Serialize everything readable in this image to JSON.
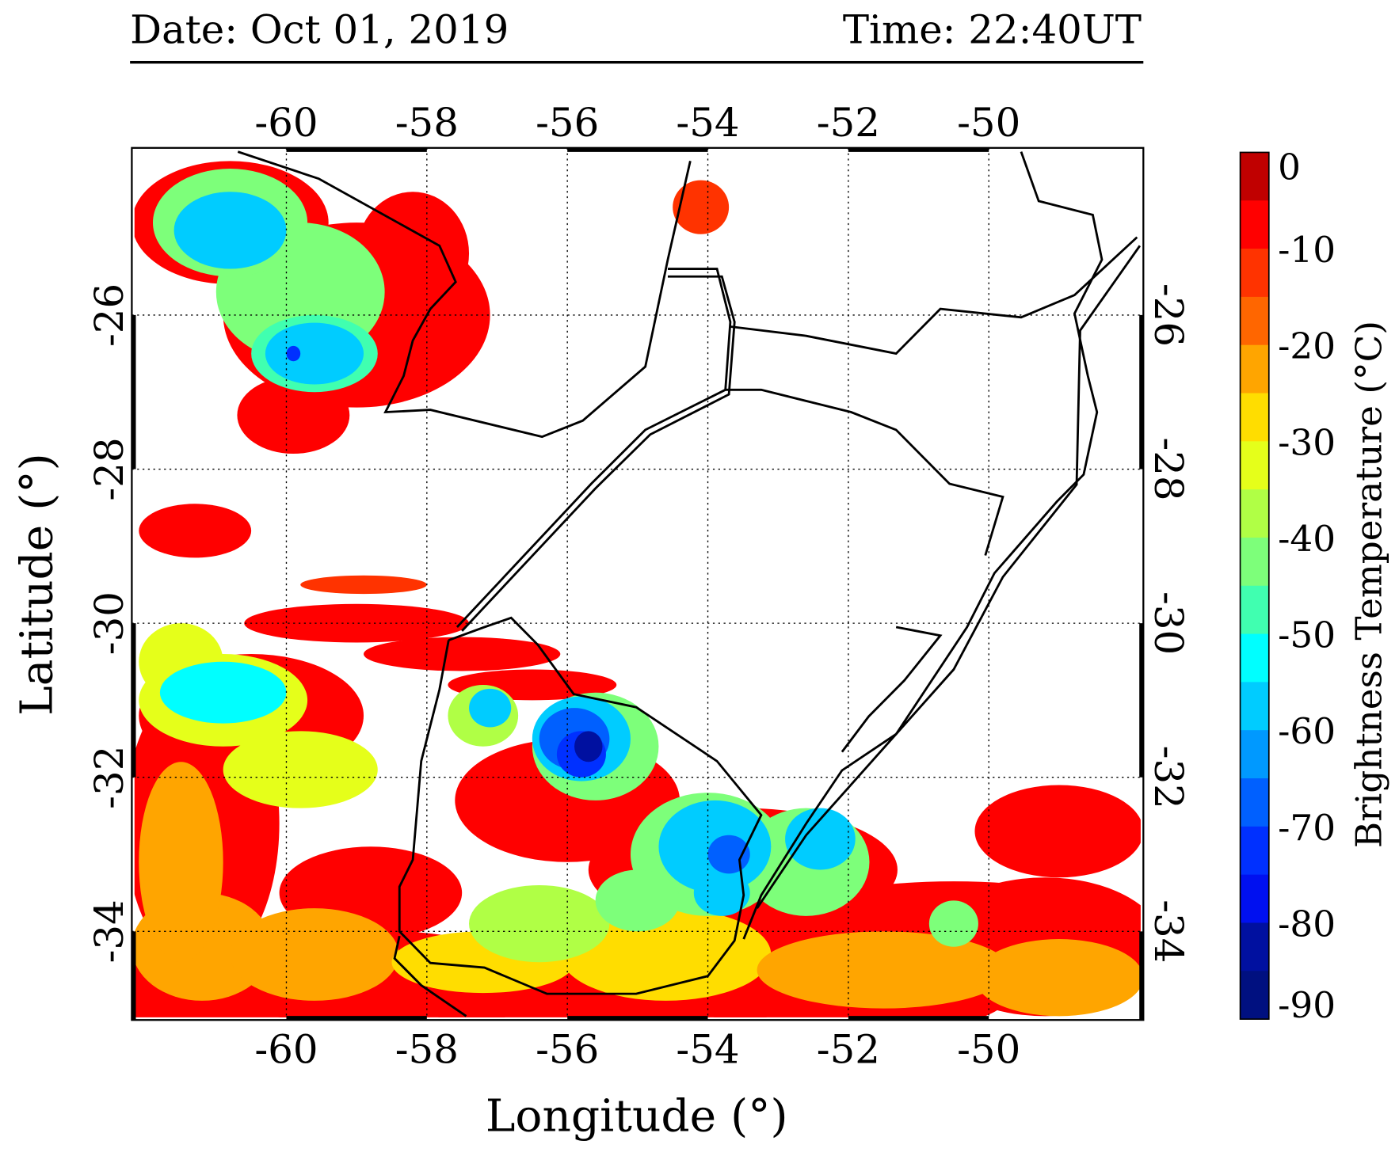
{
  "header": {
    "date": "Date: Oct 01, 2019",
    "time": "Time: 22:40UT"
  },
  "chart_data": {
    "type": "heatmap",
    "title": "",
    "xlabel": "Longitude (°)",
    "ylabel": "Latitude (°)",
    "xlim": [
      -62.2,
      -47.8
    ],
    "ylim": [
      -35.15,
      -23.83
    ],
    "xticks": [
      -60,
      -58,
      -56,
      -54,
      -52,
      -50
    ],
    "xtick_labels": [
      "-60",
      "-58",
      "-56",
      "-54",
      "-52",
      "-50"
    ],
    "yticks": [
      -26,
      -28,
      -30,
      -32,
      -34
    ],
    "ytick_labels": [
      "-26",
      "-28",
      "-30",
      "-32",
      "-34"
    ],
    "grid": true,
    "colorbar": {
      "label": "Brightness Temperature (°C)",
      "range": [
        -90,
        0
      ],
      "tick_values": [
        0,
        -10,
        -20,
        -30,
        -40,
        -50,
        -60,
        -70,
        -80,
        -90
      ],
      "tick_labels": [
        "0",
        "-10",
        "-20",
        "-30",
        "-40",
        "-50",
        "-60",
        "-70",
        "-80",
        "-90"
      ],
      "levels_top_to_bottom": [
        "#c00000",
        "#ff0000",
        "#ff3300",
        "#ff6600",
        "#ffa500",
        "#ffdd00",
        "#e5ff1a",
        "#b0ff45",
        "#7dff7a",
        "#40ffb0",
        "#00ffff",
        "#00ccff",
        "#0099ff",
        "#0060ff",
        "#0030ff",
        "#0010f0",
        "#0010a0",
        "#001080"
      ]
    },
    "cloud_cells": [
      [
        -61.1,
        -34.6,
        1.6,
        0.8,
        -8
      ],
      [
        -58.5,
        -34.7,
        2.0,
        0.7,
        -7
      ],
      [
        -55.5,
        -34.9,
        2.5,
        0.6,
        -6
      ],
      [
        -52.0,
        -34.6,
        2.5,
        0.8,
        -8
      ],
      [
        -49.2,
        -34.2,
        1.7,
        0.9,
        -9
      ],
      [
        -61.2,
        -32.6,
        1.1,
        1.9,
        -9
      ],
      [
        -60.5,
        -31.2,
        1.6,
        0.8,
        -8
      ],
      [
        -58.8,
        -33.5,
        1.3,
        0.6,
        -9
      ],
      [
        -56.0,
        -32.3,
        1.6,
        0.8,
        -8
      ],
      [
        -53.5,
        -33.2,
        2.2,
        0.8,
        -8
      ],
      [
        -50.5,
        -33.7,
        2.0,
        0.35,
        -8
      ],
      [
        -49.0,
        -32.7,
        1.2,
        0.6,
        -7
      ],
      [
        -59.0,
        -26.0,
        1.9,
        1.2,
        -8
      ],
      [
        -60.8,
        -24.8,
        1.4,
        0.8,
        -8
      ],
      [
        -58.2,
        -25.2,
        0.8,
        0.8,
        -9
      ],
      [
        -59.9,
        -27.3,
        0.8,
        0.5,
        -7
      ],
      [
        -54.1,
        -24.6,
        0.4,
        0.35,
        -13
      ],
      [
        -59.0,
        -30.0,
        1.6,
        0.25,
        -7
      ],
      [
        -57.5,
        -30.4,
        1.4,
        0.22,
        -9
      ],
      [
        -56.5,
        -30.8,
        1.2,
        0.2,
        -8
      ],
      [
        -61.3,
        -28.8,
        0.8,
        0.35,
        -8
      ],
      [
        -58.9,
        -29.5,
        0.9,
        0.12,
        -12
      ],
      [
        -61.2,
        -34.2,
        1.0,
        0.7,
        -22
      ],
      [
        -59.6,
        -34.3,
        1.2,
        0.6,
        -22
      ],
      [
        -61.5,
        -33.1,
        0.6,
        1.3,
        -20
      ],
      [
        -57.2,
        -34.4,
        1.3,
        0.4,
        -27
      ],
      [
        -54.6,
        -34.3,
        1.5,
        0.6,
        -27
      ],
      [
        -51.5,
        -34.5,
        1.8,
        0.5,
        -24
      ],
      [
        -49.0,
        -34.6,
        1.2,
        0.5,
        -22
      ],
      [
        -60.9,
        -31.0,
        1.2,
        0.6,
        -33
      ],
      [
        -59.8,
        -31.9,
        1.1,
        0.5,
        -33
      ],
      [
        -61.5,
        -30.5,
        0.6,
        0.5,
        -34
      ],
      [
        -57.2,
        -31.2,
        0.5,
        0.4,
        -38
      ],
      [
        -55.6,
        -31.6,
        0.9,
        0.7,
        -40
      ],
      [
        -56.4,
        -33.9,
        1.0,
        0.5,
        -38
      ],
      [
        -54.0,
        -33.0,
        1.1,
        0.8,
        -40
      ],
      [
        -52.6,
        -33.1,
        0.9,
        0.7,
        -40
      ],
      [
        -55.0,
        -33.6,
        0.6,
        0.4,
        -42
      ],
      [
        -50.5,
        -33.9,
        0.35,
        0.3,
        -42
      ],
      [
        -59.8,
        -25.7,
        1.2,
        0.9,
        -40
      ],
      [
        -60.8,
        -24.8,
        1.1,
        0.7,
        -40
      ],
      [
        -59.6,
        -26.5,
        0.9,
        0.5,
        -45
      ],
      [
        -60.9,
        -30.9,
        0.9,
        0.4,
        -50
      ],
      [
        -57.1,
        -31.1,
        0.3,
        0.25,
        -55
      ],
      [
        -55.8,
        -31.5,
        0.7,
        0.55,
        -58
      ],
      [
        -53.9,
        -32.9,
        0.8,
        0.6,
        -55
      ],
      [
        -52.4,
        -32.8,
        0.5,
        0.4,
        -58
      ],
      [
        -53.8,
        -33.5,
        0.4,
        0.3,
        -55
      ],
      [
        -60.8,
        -24.9,
        0.8,
        0.5,
        -55
      ],
      [
        -59.6,
        -26.5,
        0.7,
        0.4,
        -55
      ],
      [
        -55.9,
        -31.5,
        0.5,
        0.4,
        -68
      ],
      [
        -55.8,
        -31.7,
        0.35,
        0.3,
        -74
      ],
      [
        -55.7,
        -31.6,
        0.2,
        0.2,
        -80
      ],
      [
        -59.9,
        -26.5,
        0.1,
        0.1,
        -72
      ],
      [
        -53.7,
        -33.0,
        0.3,
        0.25,
        -65
      ]
    ],
    "boundaries": [
      [
        [
          -60.69,
          -23.88
        ],
        [
          -59.54,
          -24.23
        ],
        [
          -57.82,
          -25.1
        ],
        [
          -57.59,
          -25.57
        ],
        [
          -57.95,
          -25.92
        ],
        [
          -58.2,
          -26.33
        ],
        [
          -58.33,
          -26.79
        ],
        [
          -58.59,
          -27.26
        ],
        [
          -57.95,
          -27.23
        ],
        [
          -56.36,
          -27.58
        ],
        [
          -55.78,
          -27.37
        ],
        [
          -54.89,
          -26.67
        ],
        [
          -54.57,
          -25.28
        ],
        [
          -54.25,
          -24.0
        ]
      ],
      [
        [
          -57.57,
          -30.05
        ],
        [
          -55.66,
          -28.19
        ],
        [
          -54.89,
          -27.49
        ],
        [
          -53.75,
          -26.97
        ],
        [
          -53.68,
          -26.09
        ],
        [
          -53.87,
          -25.4
        ],
        [
          -54.57,
          -25.4
        ]
      ],
      [
        [
          -57.5,
          -30.1
        ],
        [
          -55.6,
          -28.25
        ],
        [
          -54.82,
          -27.55
        ],
        [
          -53.7,
          -27.03
        ],
        [
          -53.62,
          -26.09
        ],
        [
          -53.8,
          -25.5
        ],
        [
          -54.57,
          -25.5
        ]
      ],
      [
        [
          -53.68,
          -26.15
        ],
        [
          -52.6,
          -26.27
        ],
        [
          -51.32,
          -26.5
        ],
        [
          -50.69,
          -25.92
        ],
        [
          -49.54,
          -26.03
        ],
        [
          -48.78,
          -25.74
        ],
        [
          -47.89,
          -24.99
        ]
      ],
      [
        [
          -53.75,
          -26.97
        ],
        [
          -53.24,
          -26.97
        ],
        [
          -51.96,
          -27.26
        ],
        [
          -51.32,
          -27.49
        ],
        [
          -50.56,
          -28.19
        ],
        [
          -49.8,
          -28.36
        ],
        [
          -50.05,
          -29.12
        ]
      ],
      [
        [
          -49.54,
          -23.88
        ],
        [
          -49.29,
          -24.52
        ],
        [
          -48.52,
          -24.7
        ],
        [
          -48.39,
          -25.28
        ],
        [
          -48.78,
          -25.98
        ],
        [
          -48.59,
          -26.79
        ],
        [
          -48.46,
          -27.26
        ],
        [
          -48.65,
          -28.07
        ],
        [
          -49.03,
          -28.42
        ],
        [
          -49.92,
          -29.35
        ],
        [
          -50.31,
          -30.05
        ],
        [
          -51.32,
          -31.44
        ],
        [
          -52.09,
          -31.91
        ],
        [
          -52.6,
          -32.6
        ],
        [
          -53.24,
          -33.53
        ],
        [
          -53.49,
          -34.1
        ]
      ],
      [
        [
          -47.85,
          -25.1
        ],
        [
          -48.7,
          -26.2
        ],
        [
          -48.75,
          -28.2
        ],
        [
          -49.8,
          -29.4
        ],
        [
          -50.5,
          -30.6
        ],
        [
          -52.6,
          -32.75
        ],
        [
          -53.3,
          -33.7
        ]
      ],
      [
        [
          -57.69,
          -30.22
        ],
        [
          -57.82,
          -30.86
        ],
        [
          -58.08,
          -31.79
        ],
        [
          -58.2,
          -33.07
        ],
        [
          -58.39,
          -33.42
        ],
        [
          -58.39,
          -34.0
        ],
        [
          -57.95,
          -34.41
        ],
        [
          -57.18,
          -34.47
        ],
        [
          -56.29,
          -34.81
        ],
        [
          -55.02,
          -34.81
        ],
        [
          -54.0,
          -34.58
        ],
        [
          -53.62,
          -34.12
        ],
        [
          -53.49,
          -33.53
        ],
        [
          -53.55,
          -33.07
        ],
        [
          -53.24,
          -32.49
        ],
        [
          -53.87,
          -31.79
        ],
        [
          -55.02,
          -31.09
        ],
        [
          -55.91,
          -30.92
        ],
        [
          -56.42,
          -30.28
        ],
        [
          -56.8,
          -29.93
        ],
        [
          -57.18,
          -30.05
        ],
        [
          -57.69,
          -30.22
        ]
      ],
      [
        [
          -58.39,
          -34.06
        ],
        [
          -58.46,
          -34.35
        ],
        [
          -58.08,
          -34.7
        ],
        [
          -57.44,
          -35.1
        ]
      ],
      [
        [
          -51.32,
          -30.05
        ],
        [
          -50.69,
          -30.16
        ],
        [
          -51.2,
          -30.74
        ],
        [
          -51.71,
          -31.21
        ],
        [
          -52.09,
          -31.67
        ]
      ]
    ]
  }
}
